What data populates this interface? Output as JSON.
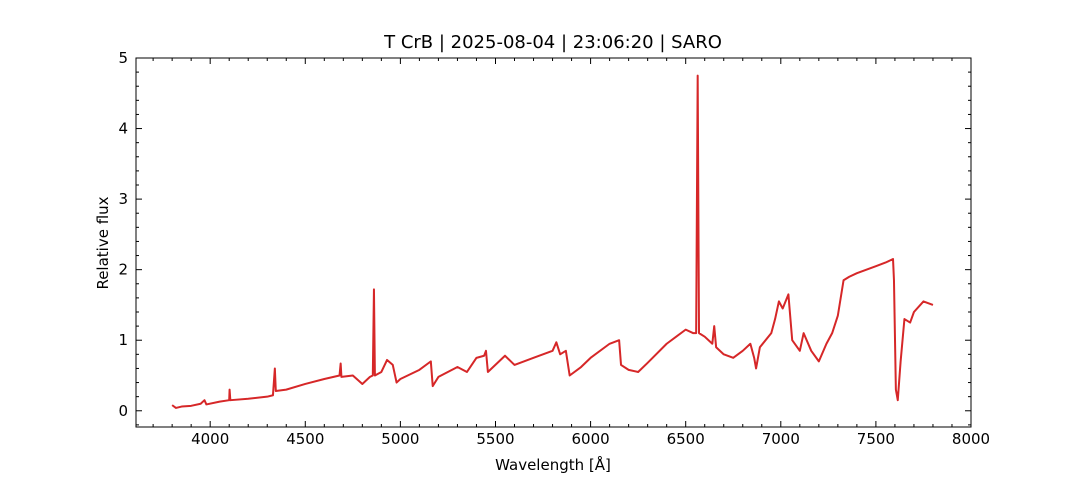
{
  "chart_data": {
    "type": "line",
    "title": "T CrB | 2025-08-04 | 23:06:20 | SARO",
    "x_label": "Wavelength [Å]",
    "y_label": "Relative flux",
    "xlim": [
      3610,
      8000
    ],
    "ylim": [
      -0.23,
      5
    ],
    "xticks": [
      4000,
      4500,
      5000,
      5500,
      6000,
      6500,
      7000,
      7500,
      8000
    ],
    "yticks": [
      0,
      1,
      2,
      3,
      4,
      5
    ],
    "minor_xticks": [
      3700,
      3800,
      3900,
      4100,
      4200,
      4300,
      4400,
      4600,
      4700,
      4800,
      4900,
      5100,
      5200,
      5300,
      5400,
      5600,
      5700,
      5800,
      5900,
      6100,
      6200,
      6300,
      6400,
      6600,
      6700,
      6800,
      6900,
      7100,
      7200,
      7300,
      7400,
      7600,
      7700,
      7800,
      7900
    ],
    "minor_yticks": [
      -0.2,
      0.2,
      0.4,
      0.6,
      0.8,
      1.2,
      1.4,
      1.6,
      1.8,
      2.2,
      2.4,
      2.6,
      2.8,
      3.2,
      3.4,
      3.6,
      3.8,
      4.2,
      4.4,
      4.6,
      4.8
    ],
    "series": [
      {
        "color": "#d62728",
        "x": [
          3800,
          3820,
          3850,
          3900,
          3950,
          3970,
          3980,
          4050,
          4100,
          4102,
          4106,
          4200,
          4300,
          4330,
          4340,
          4345,
          4400,
          4500,
          4600,
          4680,
          4686,
          4690,
          4750,
          4800,
          4840,
          4855,
          4861,
          4866,
          4900,
          4930,
          4960,
          4980,
          5000,
          5100,
          5160,
          5170,
          5200,
          5300,
          5350,
          5400,
          5440,
          5450,
          5460,
          5550,
          5600,
          5700,
          5800,
          5820,
          5840,
          5870,
          5890,
          5950,
          6000,
          6100,
          6150,
          6160,
          6200,
          6250,
          6300,
          6400,
          6450,
          6500,
          6540,
          6555,
          6563,
          6570,
          6600,
          6640,
          6650,
          6660,
          6700,
          6750,
          6800,
          6840,
          6860,
          6870,
          6890,
          6950,
          6970,
          6990,
          7010,
          7040,
          7060,
          7100,
          7120,
          7160,
          7200,
          7240,
          7270,
          7300,
          7330,
          7360,
          7400,
          7450,
          7500,
          7550,
          7590,
          7595,
          7605,
          7615,
          7630,
          7650,
          7680,
          7700,
          7750,
          7800
        ],
        "values": [
          0.08,
          0.04,
          0.06,
          0.07,
          0.1,
          0.15,
          0.09,
          0.13,
          0.15,
          0.3,
          0.15,
          0.17,
          0.2,
          0.22,
          0.6,
          0.28,
          0.3,
          0.38,
          0.45,
          0.5,
          0.67,
          0.48,
          0.5,
          0.38,
          0.48,
          0.5,
          1.72,
          0.5,
          0.55,
          0.72,
          0.65,
          0.4,
          0.45,
          0.58,
          0.7,
          0.35,
          0.48,
          0.62,
          0.55,
          0.75,
          0.78,
          0.85,
          0.55,
          0.78,
          0.65,
          0.75,
          0.85,
          0.97,
          0.8,
          0.85,
          0.5,
          0.62,
          0.75,
          0.95,
          1.0,
          0.65,
          0.58,
          0.55,
          0.68,
          0.95,
          1.05,
          1.15,
          1.1,
          1.1,
          4.75,
          1.1,
          1.05,
          0.95,
          1.2,
          0.9,
          0.8,
          0.75,
          0.85,
          0.95,
          0.75,
          0.6,
          0.9,
          1.1,
          1.3,
          1.55,
          1.45,
          1.65,
          1.0,
          0.85,
          1.1,
          0.85,
          0.7,
          0.95,
          1.1,
          1.35,
          1.85,
          1.9,
          1.95,
          2.0,
          2.05,
          2.1,
          2.15,
          1.85,
          0.3,
          0.15,
          0.7,
          1.3,
          1.25,
          1.4,
          1.55,
          1.5
        ]
      }
    ]
  }
}
